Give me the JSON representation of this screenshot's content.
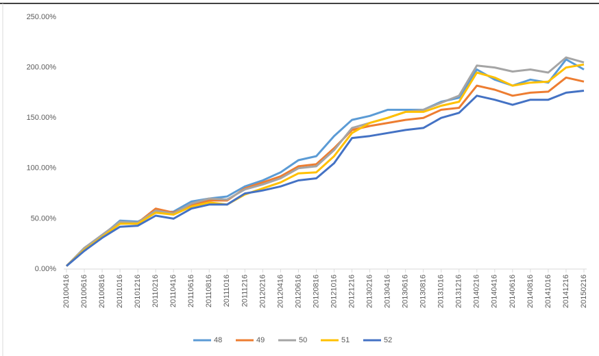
{
  "chart_data": {
    "type": "line",
    "categories": [
      "20100416",
      "20100616",
      "20100816",
      "20101016",
      "20101216",
      "20110216",
      "20110416",
      "20110616",
      "20110816",
      "20111016",
      "20111216",
      "20120216",
      "20120416",
      "20120616",
      "20120816",
      "20121016",
      "20121216",
      "20130216",
      "20130416",
      "20130616",
      "20130816",
      "20131016",
      "20131216",
      "20140216",
      "20140416",
      "20140616",
      "20140816",
      "20141016",
      "20141216",
      "20150216"
    ],
    "series": [
      {
        "name": "48",
        "color": "#5b9bd5",
        "values": [
          3,
          20,
          33,
          48,
          47,
          56,
          57,
          67,
          70,
          72,
          82,
          88,
          96,
          108,
          112,
          132,
          148,
          152,
          158,
          158,
          158,
          166,
          170,
          198,
          188,
          182,
          188,
          185,
          208,
          198
        ]
      },
      {
        "name": "49",
        "color": "#ed7d31",
        "values": [
          3,
          20,
          33,
          46,
          46,
          60,
          56,
          64,
          68,
          68,
          80,
          86,
          92,
          102,
          104,
          120,
          138,
          142,
          145,
          148,
          150,
          158,
          160,
          182,
          178,
          172,
          175,
          176,
          190,
          186
        ]
      },
      {
        "name": "50",
        "color": "#a5a5a5",
        "values": [
          3,
          21,
          34,
          47,
          46,
          58,
          55,
          65,
          70,
          69,
          79,
          84,
          90,
          100,
          102,
          118,
          140,
          145,
          150,
          156,
          158,
          165,
          172,
          202,
          200,
          196,
          198,
          195,
          210,
          205
        ]
      },
      {
        "name": "51",
        "color": "#ffc000",
        "values": [
          3,
          19,
          32,
          45,
          45,
          56,
          54,
          62,
          66,
          64,
          74,
          80,
          86,
          95,
          96,
          112,
          135,
          145,
          150,
          156,
          156,
          162,
          166,
          195,
          190,
          182,
          185,
          186,
          200,
          203
        ]
      },
      {
        "name": "52",
        "color": "#4472c4",
        "values": [
          3,
          18,
          31,
          42,
          43,
          53,
          50,
          60,
          64,
          64,
          75,
          78,
          82,
          88,
          90,
          105,
          130,
          132,
          135,
          138,
          140,
          150,
          155,
          172,
          168,
          163,
          168,
          168,
          175,
          177
        ]
      }
    ],
    "ylim": [
      0,
      250
    ],
    "yticks": [
      {
        "value": 0,
        "label": "0.00%"
      },
      {
        "value": 50,
        "label": "50.00%"
      },
      {
        "value": 100,
        "label": "100.00%"
      },
      {
        "value": 150,
        "label": "150.00%"
      },
      {
        "value": 200,
        "label": "200.00%"
      },
      {
        "value": 250,
        "label": "250.00%"
      }
    ],
    "legend": "bottom"
  }
}
